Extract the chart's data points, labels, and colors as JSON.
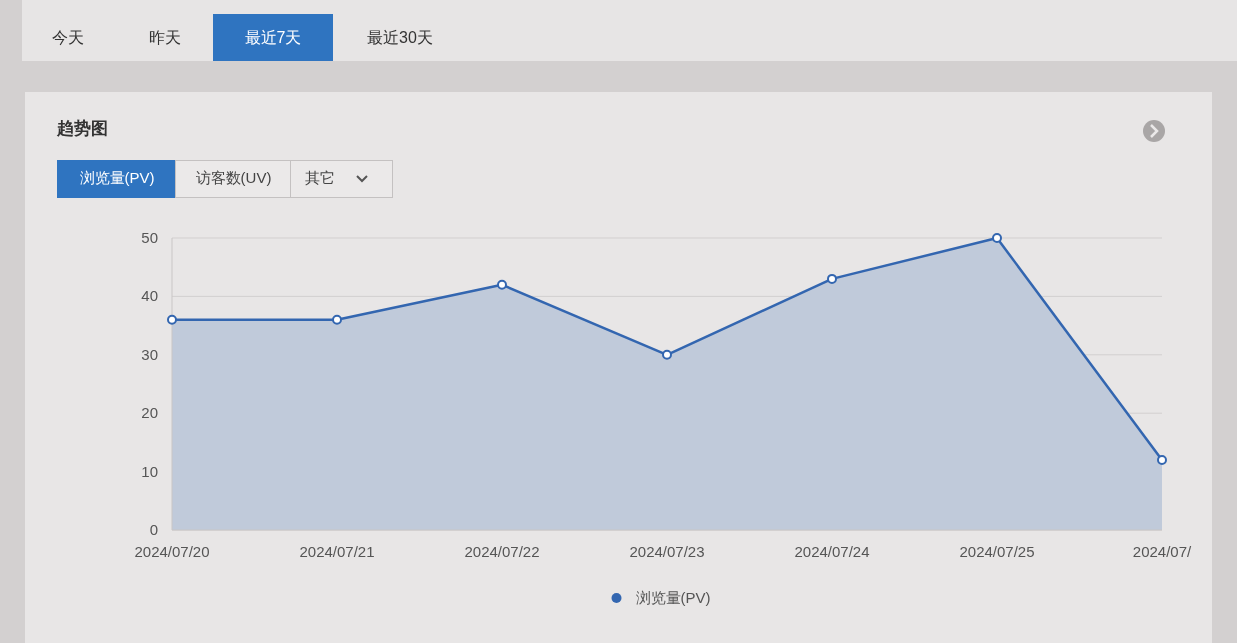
{
  "chart_data": {
    "type": "area",
    "title": "趋势图",
    "annotations": [
      "今天",
      "昨天",
      "最近7天",
      "最近30天",
      "浏览量(PV)",
      "访客数(UV)",
      "其它"
    ],
    "categories": [
      "2024/07/20",
      "2024/07/21",
      "2024/07/22",
      "2024/07/23",
      "2024/07/24",
      "2024/07/25",
      "2024/07/"
    ],
    "series": [
      {
        "name": "浏览量(PV)",
        "color": "#3366b0",
        "values": [
          36,
          36,
          42,
          30,
          43,
          50,
          12
        ]
      }
    ],
    "ylim": [
      0,
      50
    ],
    "yticks": [
      0,
      10,
      20,
      30,
      40,
      50
    ],
    "grid": "y",
    "legend": "bottom",
    "marker": "circle"
  }
}
